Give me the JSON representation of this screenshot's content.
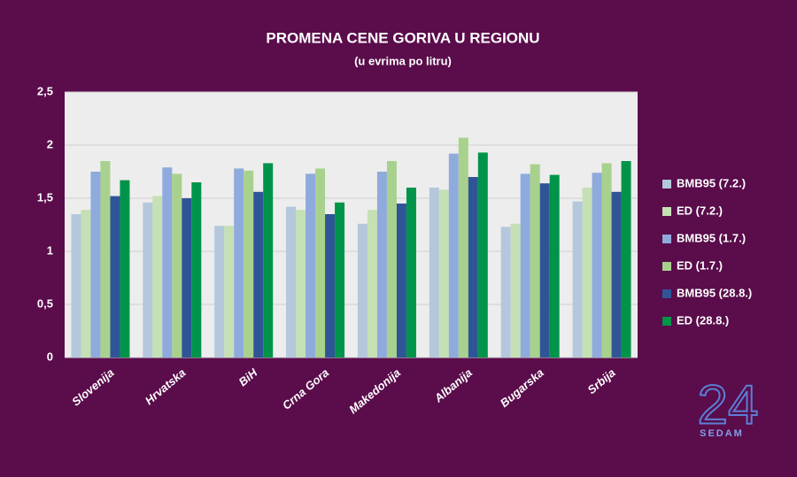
{
  "chart_data": {
    "type": "bar",
    "title": "PROMENA CENE GORIVA U REGIONU",
    "subtitle": "(u evrima po litru)",
    "categories": [
      "Slovenija",
      "Hrvatska",
      "BiH",
      "Crna Gora",
      "Makedonija",
      "Albanija",
      "Bugarska",
      "Srbija"
    ],
    "series": [
      {
        "name": "BMB95 (7.2.)",
        "color": "#b4c7dc",
        "values": [
          1.35,
          1.46,
          1.24,
          1.42,
          1.26,
          1.6,
          1.23,
          1.47
        ]
      },
      {
        "name": "ED (7.2.)",
        "color": "#c5e0b4",
        "values": [
          1.39,
          1.52,
          1.24,
          1.39,
          1.39,
          1.58,
          1.26,
          1.6
        ]
      },
      {
        "name": "BMB95 (1.7.)",
        "color": "#8faadc",
        "values": [
          1.75,
          1.79,
          1.78,
          1.73,
          1.75,
          1.92,
          1.73,
          1.74
        ]
      },
      {
        "name": "ED (1.7.)",
        "color": "#a9d18e",
        "values": [
          1.85,
          1.73,
          1.76,
          1.78,
          1.85,
          2.07,
          1.82,
          1.83
        ]
      },
      {
        "name": "BMB95 (28.8.)",
        "color": "#2f5597",
        "values": [
          1.52,
          1.5,
          1.56,
          1.35,
          1.45,
          1.7,
          1.64,
          1.56
        ]
      },
      {
        "name": "ED (28.8.)",
        "color": "#00944a",
        "values": [
          1.67,
          1.65,
          1.83,
          1.46,
          1.6,
          1.93,
          1.72,
          1.85
        ]
      }
    ],
    "ylim": [
      0,
      2.5
    ],
    "yticks": [
      0,
      {
        "value": 0.5,
        "label": "0,5"
      },
      1,
      {
        "value": 1.5,
        "label": "1,5"
      },
      2,
      {
        "value": 2.5,
        "label": "2,5"
      }
    ],
    "grid": true,
    "legend": "right",
    "logo": {
      "number": "24",
      "word": "SEDAM"
    }
  }
}
